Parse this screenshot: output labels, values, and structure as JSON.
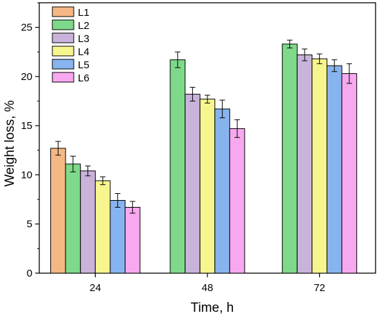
{
  "chart_data": {
    "type": "bar",
    "title": "",
    "xlabel": "Time, h",
    "ylabel": "Weight loss, %",
    "categories": [
      "24",
      "48",
      "72"
    ],
    "ylim": [
      0,
      27.5
    ],
    "yticks": [
      "0",
      "5",
      "10",
      "15",
      "20",
      "25"
    ],
    "grid": false,
    "legend_position": "top-left",
    "series": [
      {
        "name": "L1",
        "color": "#f5b885",
        "values": [
          12.7,
          null,
          null
        ],
        "errors": [
          0.7,
          null,
          null
        ]
      },
      {
        "name": "L2",
        "color": "#7fd98a",
        "values": [
          11.1,
          21.7,
          23.3
        ],
        "errors": [
          0.8,
          0.8,
          0.4
        ]
      },
      {
        "name": "L3",
        "color": "#c9b3db",
        "values": [
          10.4,
          18.2,
          22.2
        ],
        "errors": [
          0.5,
          0.7,
          0.6
        ]
      },
      {
        "name": "L4",
        "color": "#f7f58e",
        "values": [
          9.4,
          17.7,
          21.8
        ],
        "errors": [
          0.4,
          0.4,
          0.5
        ]
      },
      {
        "name": "L5",
        "color": "#87b4ee",
        "values": [
          7.4,
          16.7,
          21.1
        ],
        "errors": [
          0.7,
          0.9,
          0.6
        ]
      },
      {
        "name": "L6",
        "color": "#f7a8ef",
        "values": [
          6.7,
          14.7,
          20.3
        ],
        "errors": [
          0.6,
          0.9,
          1.0
        ]
      }
    ]
  }
}
